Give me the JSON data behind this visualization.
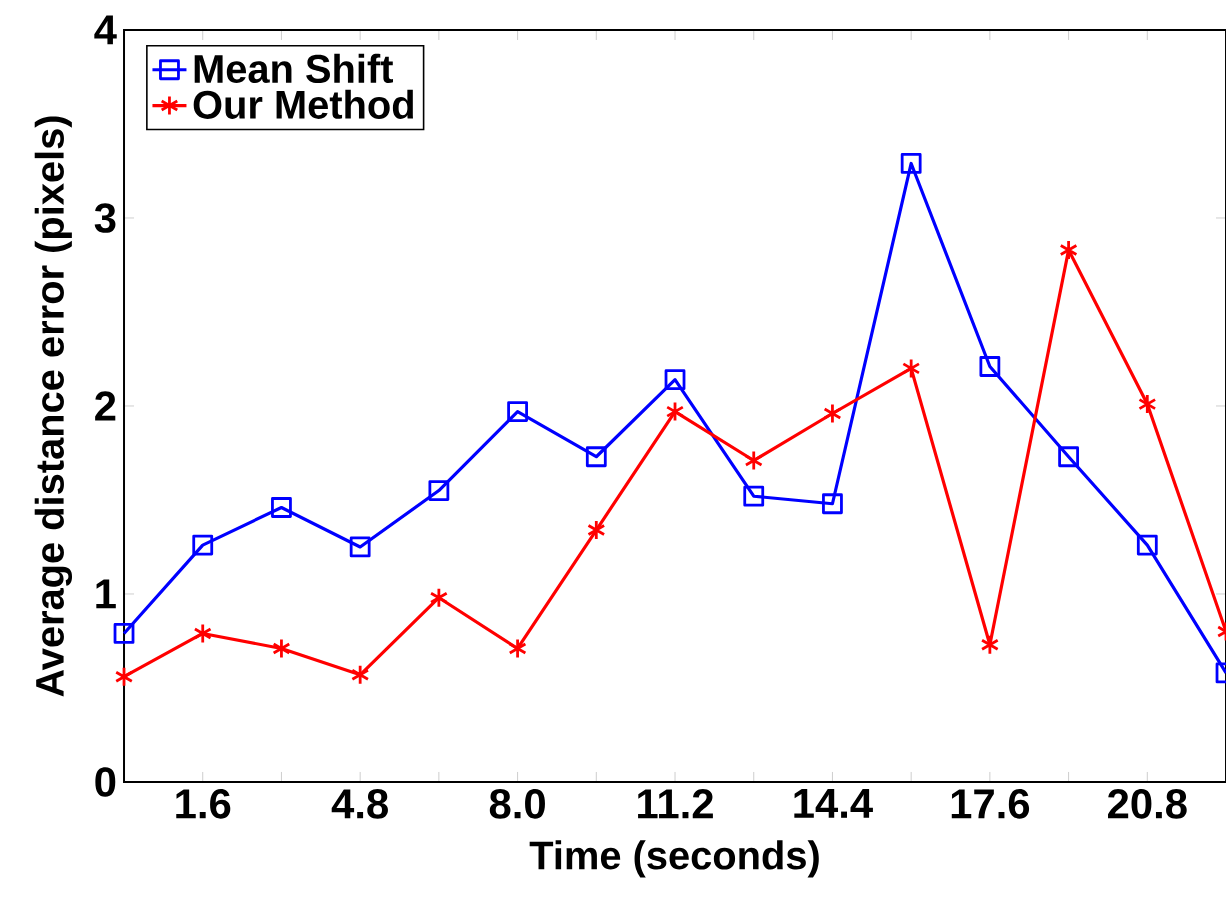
{
  "chart_data": {
    "type": "line",
    "xlabel": "Time (seconds)",
    "ylabel": "Average distance error (pixels)",
    "x": [
      0,
      1.6,
      3.2,
      4.8,
      6.4,
      8.0,
      9.6,
      11.2,
      12.8,
      14.4,
      16.0,
      17.6,
      19.2,
      20.8,
      22.4
    ],
    "series": [
      {
        "name": "Mean Shift",
        "color": "#0000ff",
        "marker": "square",
        "values": [
          0.79,
          1.26,
          1.46,
          1.25,
          1.55,
          1.97,
          1.73,
          2.14,
          1.52,
          1.48,
          3.29,
          2.21,
          1.73,
          1.26,
          0.58
        ]
      },
      {
        "name": "Our Method",
        "color": "#ff0000",
        "marker": "cross",
        "values": [
          0.56,
          0.79,
          0.71,
          0.57,
          0.98,
          0.71,
          1.34,
          1.97,
          1.71,
          1.96,
          2.2,
          0.73,
          2.83,
          2.01,
          0.8
        ]
      }
    ],
    "xlim": [
      0,
      22.4
    ],
    "ylim": [
      0,
      4
    ],
    "xticks": [
      {
        "value": 1.6,
        "label": "1.6"
      },
      {
        "value": 3.2,
        "label": null
      },
      {
        "value": 4.8,
        "label": "4.8"
      },
      {
        "value": 6.4,
        "label": null
      },
      {
        "value": 8.0,
        "label": "8.0"
      },
      {
        "value": 9.6,
        "label": null
      },
      {
        "value": 11.2,
        "label": "11.2"
      },
      {
        "value": 12.8,
        "label": null
      },
      {
        "value": 14.4,
        "label": "14.4"
      },
      {
        "value": 16.0,
        "label": null
      },
      {
        "value": 17.6,
        "label": "17.6"
      },
      {
        "value": 19.2,
        "label": null
      },
      {
        "value": 20.8,
        "label": "20.8"
      }
    ],
    "yticks": [
      0,
      1,
      2,
      3,
      4
    ],
    "grid": false,
    "legend": "top left",
    "line_style": "solid"
  }
}
